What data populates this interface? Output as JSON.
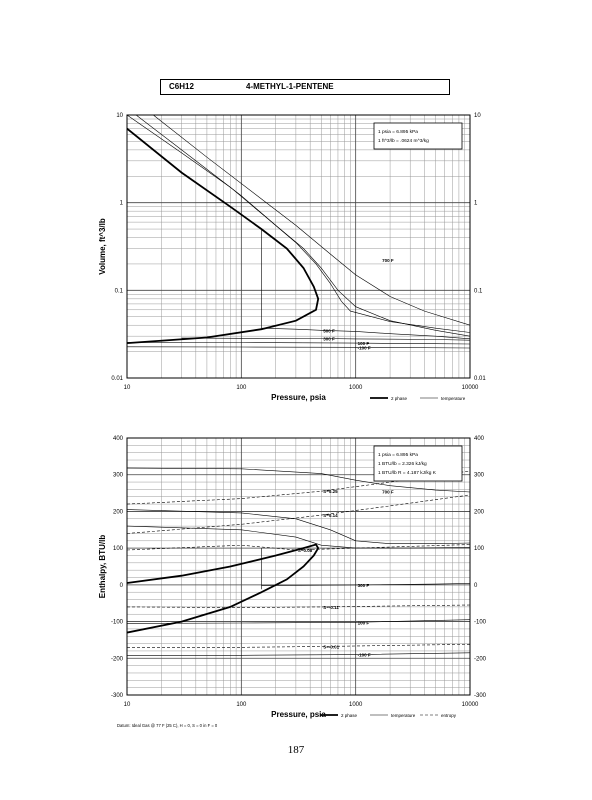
{
  "header": {
    "formula": "C6H12",
    "name": "4-METHYL-1-PENTENE"
  },
  "page_number": "187",
  "chart_data": [
    {
      "type": "line",
      "xlabel": "Pressure,  psia",
      "ylabel": "Volume, ft^3/lb",
      "x_scale": "log",
      "y_scale": "log",
      "xlim": [
        10,
        10000
      ],
      "ylim": [
        0.01,
        10
      ],
      "x_ticks": [
        "10",
        "100",
        "1000",
        "10000"
      ],
      "y_ticks": [
        "10",
        "1",
        "0.1",
        "0.01"
      ],
      "y_ticks_right": [
        "10",
        "1",
        "0.1",
        "0.01"
      ],
      "grid": true,
      "conversions": [
        "1 psia  =  6.895 kPa",
        "1 ft^3/lb  =  .0624 m^3/kg"
      ],
      "legend": [
        "2 phase",
        "temperature"
      ],
      "series": [
        {
          "kind": "2 phase",
          "points": [
            [
              10,
              7.0
            ],
            [
              30,
              2.2
            ],
            [
              80,
              0.9
            ],
            [
              150,
              0.5
            ],
            [
              250,
              0.3
            ],
            [
              350,
              0.18
            ],
            [
              430,
              0.11
            ],
            [
              470,
              0.08
            ],
            [
              450,
              0.06
            ],
            [
              300,
              0.045
            ],
            [
              150,
              0.036
            ],
            [
              50,
              0.029
            ],
            [
              10,
              0.025
            ]
          ]
        },
        {
          "kind": "temperature",
          "points": [
            [
              12,
              10
            ],
            [
              40,
              3.0
            ],
            [
              100,
              1.2
            ],
            [
              200,
              0.55
            ],
            [
              350,
              0.3
            ],
            [
              500,
              0.18
            ],
            [
              700,
              0.1
            ],
            [
              1000,
              0.065
            ],
            [
              2000,
              0.045
            ],
            [
              5000,
              0.035
            ],
            [
              10000,
              0.03
            ]
          ]
        },
        {
          "kind": "temperature",
          "points": [
            [
              10,
              10
            ],
            [
              30,
              3.7
            ],
            [
              80,
              1.5
            ],
            [
              160,
              0.7
            ],
            [
              300,
              0.35
            ],
            [
              450,
              0.2
            ],
            [
              600,
              0.12
            ],
            [
              750,
              0.075
            ],
            [
              900,
              0.058
            ],
            [
              2000,
              0.044
            ],
            [
              5000,
              0.037
            ],
            [
              10000,
              0.033
            ]
          ]
        },
        {
          "kind": "temperature",
          "label": "700 F",
          "points": [
            [
              17,
              10
            ],
            [
              50,
              3.3
            ],
            [
              150,
              1.1
            ],
            [
              300,
              0.55
            ],
            [
              600,
              0.26
            ],
            [
              1000,
              0.15
            ],
            [
              2000,
              0.085
            ],
            [
              4000,
              0.058
            ],
            [
              10000,
              0.04
            ]
          ]
        },
        {
          "kind": "temperature",
          "label": "500 F",
          "points": [
            [
              150,
              0.037
            ],
            [
              300,
              0.036
            ],
            [
              500,
              0.035
            ],
            [
              1000,
              0.034
            ],
            [
              2000,
              0.032
            ],
            [
              5000,
              0.03
            ],
            [
              10000,
              0.028
            ]
          ]
        },
        {
          "kind": "temperature",
          "label": "300 F",
          "points": [
            [
              30,
              0.0285
            ],
            [
              100,
              0.0284
            ],
            [
              500,
              0.0282
            ],
            [
              1000,
              0.0279
            ],
            [
              5000,
              0.0275
            ],
            [
              10000,
              0.027
            ]
          ]
        },
        {
          "kind": "temperature",
          "label": "100 F",
          "points": [
            [
              10,
              0.0255
            ],
            [
              100,
              0.0254
            ],
            [
              1000,
              0.025
            ],
            [
              5000,
              0.0246
            ],
            [
              10000,
              0.0244
            ]
          ]
        },
        {
          "kind": "temperature",
          "label": "-100 F",
          "points": [
            [
              10,
              0.0227
            ],
            [
              100,
              0.0226
            ],
            [
              1000,
              0.0224
            ],
            [
              10000,
              0.022
            ]
          ]
        },
        {
          "kind": "temperature",
          "points": [
            [
              150,
              0.037
            ],
            [
              150,
              0.49
            ]
          ]
        }
      ]
    },
    {
      "type": "line",
      "xlabel": "Pressure,  psia",
      "ylabel": "Enthalpy, BTU/lb",
      "x_scale": "log",
      "xlim": [
        10,
        10000
      ],
      "ylim": [
        -300,
        400
      ],
      "x_ticks": [
        "10",
        "100",
        "1000",
        "10000"
      ],
      "y_ticks": [
        "400",
        "300",
        "200",
        "100",
        "0",
        "-100",
        "-200",
        "-300"
      ],
      "y_ticks_right": [
        "400",
        "300",
        "200",
        "100",
        "0",
        "-100",
        "-200",
        "-300"
      ],
      "grid": true,
      "conversions": [
        "1 psia  =  6.895 kPa",
        "1 BTU/lb  =  2.326 kJ/kg",
        "1 BTU/lb R  =  4.187 kJ/kg K"
      ],
      "legend": [
        "2 phase",
        "temperature",
        "entropy"
      ],
      "footnote": "Datum: Ideal Gas @ 77 F (25 C),  H = 0,  S = 0 in F = 0",
      "series": [
        {
          "kind": "2 phase",
          "points": [
            [
              10,
              5
            ],
            [
              30,
              25
            ],
            [
              80,
              50
            ],
            [
              200,
              80
            ],
            [
              350,
              100
            ],
            [
              450,
              110
            ],
            [
              470,
              100
            ],
            [
              430,
              80
            ],
            [
              350,
              50
            ],
            [
              250,
              15
            ],
            [
              150,
              -20
            ],
            [
              80,
              -60
            ],
            [
              30,
              -100
            ],
            [
              10,
              -130
            ]
          ]
        },
        {
          "kind": "temperature",
          "label": "700 F",
          "points": [
            [
              10,
              318
            ],
            [
              100,
              316
            ],
            [
              500,
              303
            ],
            [
              1000,
              285
            ],
            [
              2000,
              270
            ],
            [
              5000,
              258
            ],
            [
              10000,
              253
            ]
          ]
        },
        {
          "kind": "temperature",
          "points": [
            [
              10,
              205
            ],
            [
              100,
              196
            ],
            [
              300,
              180
            ],
            [
              600,
              150
            ],
            [
              1000,
              120
            ],
            [
              2000,
              112
            ],
            [
              5000,
              112
            ],
            [
              10000,
              114
            ]
          ]
        },
        {
          "kind": "temperature",
          "points": [
            [
              10,
              160
            ],
            [
              100,
              150
            ],
            [
              300,
              130
            ],
            [
              500,
              108
            ],
            [
              1000,
              100
            ],
            [
              3000,
              100
            ],
            [
              10000,
              102
            ]
          ]
        },
        {
          "kind": "temperature",
          "label": "300 F",
          "points": [
            [
              150,
              -2
            ],
            [
              500,
              -1
            ],
            [
              1000,
              0
            ],
            [
              5000,
              2
            ],
            [
              10000,
              4
            ]
          ]
        },
        {
          "kind": "temperature",
          "label": "100 F",
          "points": [
            [
              10,
              -105
            ],
            [
              100,
              -104
            ],
            [
              1000,
              -102
            ],
            [
              10000,
              -95
            ]
          ]
        },
        {
          "kind": "temperature",
          "label": "-100 F",
          "points": [
            [
              10,
              -193
            ],
            [
              100,
              -192
            ],
            [
              1000,
              -190
            ],
            [
              10000,
              -185
            ]
          ]
        },
        {
          "kind": "temperature",
          "points": [
            [
              150,
              100
            ],
            [
              150,
              -12
            ]
          ]
        },
        {
          "kind": "entropy",
          "label": "S=0.25",
          "points": [
            [
              10,
              220
            ],
            [
              100,
              235
            ],
            [
              500,
              255
            ],
            [
              2000,
              280
            ],
            [
              10000,
              310
            ]
          ]
        },
        {
          "kind": "entropy",
          "label": "S=0.14",
          "points": [
            [
              10,
              140
            ],
            [
              100,
              165
            ],
            [
              500,
              190
            ],
            [
              2000,
              215
            ],
            [
              10000,
              245
            ]
          ]
        },
        {
          "kind": "entropy",
          "label": "S=0.08",
          "points": [
            [
              10,
              95
            ],
            [
              100,
              108
            ],
            [
              300,
              95
            ],
            [
              1000,
              100
            ],
            [
              10000,
              110
            ]
          ]
        },
        {
          "kind": "entropy",
          "label": "S=-0.11",
          "points": [
            [
              10,
              -60
            ],
            [
              100,
              -62
            ],
            [
              500,
              -60
            ],
            [
              10000,
              -55
            ]
          ]
        },
        {
          "kind": "entropy",
          "label": "S=-0.01",
          "points": [
            [
              10,
              -170
            ],
            [
              100,
              -170
            ],
            [
              500,
              -168
            ],
            [
              10000,
              -162
            ]
          ]
        }
      ]
    }
  ]
}
